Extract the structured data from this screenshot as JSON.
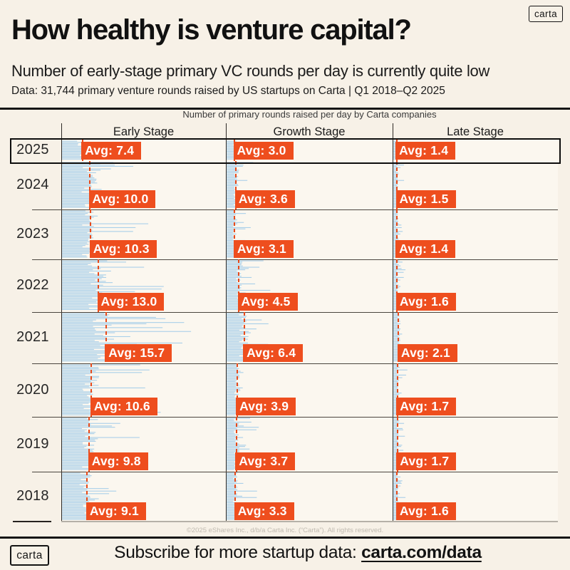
{
  "colors": {
    "background": "#F7F1E7",
    "plot_background": "#FBF7EF",
    "bar_blue": "#A9CFE9",
    "accent_orange": "#EE4E1E",
    "highlight_border": "#0D0D0D"
  },
  "header": {
    "logo_text": "carta",
    "title": "How healthy is venture capital?",
    "subtitle": "Number of early-stage primary VC rounds per day is currently quite low",
    "data_note": "Data: 31,744 primary venture rounds raised by US startups on Carta | Q1 2018–Q2 2025"
  },
  "chart_data": {
    "type": "bar",
    "variant": "horizontal daily-strip histogram, one panel per stage, one band per year",
    "title": "Number of primary rounds raised per day by Carta companies",
    "group_labels": [
      "Early Stage",
      "Growth Stage",
      "Late Stage"
    ],
    "years": [
      "2025",
      "2024",
      "2023",
      "2022",
      "2021",
      "2020",
      "2019",
      "2018"
    ],
    "highlighted_year": "2025",
    "avg_marker_style": "dashed vertical line at average value",
    "series": [
      {
        "name": "Early Stage",
        "avg_per_day": [
          7.4,
          10.0,
          10.3,
          13.0,
          15.7,
          10.6,
          9.8,
          9.1
        ],
        "avg_labels": [
          "Avg: 7.4",
          "Avg: 10.0",
          "Avg: 10.3",
          "Avg: 13.0",
          "Avg: 15.7",
          "Avg: 10.6",
          "Avg: 9.8",
          "Avg: 9.1"
        ],
        "est_daily_max": [
          15,
          31,
          33,
          41,
          49,
          37,
          31,
          27
        ]
      },
      {
        "name": "Growth Stage",
        "avg_per_day": [
          3.0,
          3.6,
          3.1,
          4.5,
          6.4,
          3.9,
          3.7,
          3.3
        ],
        "avg_labels": [
          "Avg: 3.0",
          "Avg: 3.6",
          "Avg: 3.1",
          "Avg: 4.5",
          "Avg: 6.4",
          "Avg: 3.9",
          "Avg: 3.7",
          "Avg: 3.3"
        ],
        "est_daily_max": [
          6,
          10,
          9,
          16,
          22,
          11,
          12,
          11
        ]
      },
      {
        "name": "Late Stage",
        "avg_per_day": [
          1.4,
          1.5,
          1.4,
          1.6,
          2.1,
          1.7,
          1.7,
          1.6
        ],
        "avg_labels": [
          "Avg: 1.4",
          "Avg: 1.5",
          "Avg: 1.4",
          "Avg: 1.6",
          "Avg: 2.1",
          "Avg: 1.7",
          "Avg: 1.7",
          "Avg: 1.6"
        ],
        "est_daily_max": [
          3,
          4,
          4,
          5,
          7,
          5,
          5,
          5
        ]
      }
    ],
    "layout_hints": {
      "panels_share_scale": true,
      "legend": false,
      "rows_top_to_bottom": "2025 to 2018",
      "year_separators": true
    }
  },
  "footer": {
    "copyright": "©2025 eShares Inc., d/b/a Carta Inc. (“Carta”). All rights reserved.",
    "logo_text": "carta",
    "subscribe_prefix": "Subscribe for more startup data: ",
    "subscribe_link": "carta.com/data"
  }
}
